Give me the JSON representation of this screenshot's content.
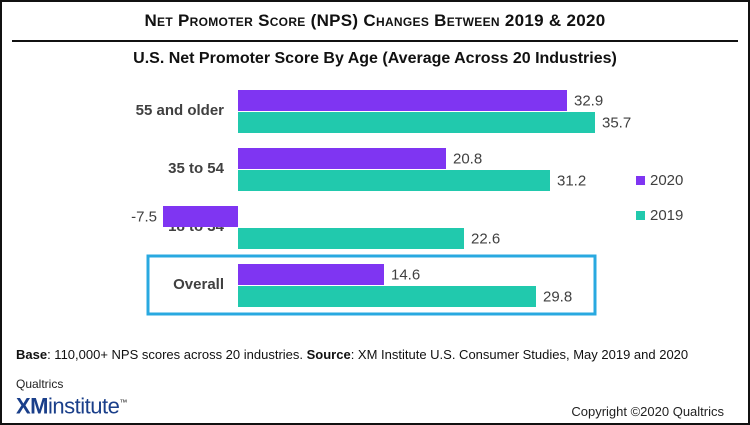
{
  "title": "Net Promoter Score (NPS) Changes Between 2019 & 2020",
  "subtitle": "U.S. Net Promoter Score By Age (Average Across 20 Industries)",
  "chart_data": {
    "type": "bar",
    "orientation": "horizontal",
    "categories": [
      "55 and older",
      "35 to 54",
      "18 to 34",
      "Overall"
    ],
    "series": [
      {
        "name": "2020",
        "color": "#7f35f2",
        "values": [
          32.9,
          20.8,
          -7.5,
          14.6
        ]
      },
      {
        "name": "2019",
        "color": "#21c9ad",
        "values": [
          35.7,
          31.2,
          22.6,
          29.8
        ]
      }
    ],
    "highlighted_category": "Overall",
    "highlight_color": "#29a9e0",
    "legend_position": "right",
    "grid": false
  },
  "footnote": {
    "base_label": "Base",
    "base_text": ": 110,000+ NPS scores across 20 industries. ",
    "source_label": "Source",
    "source_text": ": XM Institute U.S. Consumer Studies, May 2019 and 2020"
  },
  "logo": {
    "small": "Qualtrics",
    "xm": "XM",
    "institute": "institute",
    "tm": "™"
  },
  "copyright": "Copyright ©2020 Qualtrics"
}
